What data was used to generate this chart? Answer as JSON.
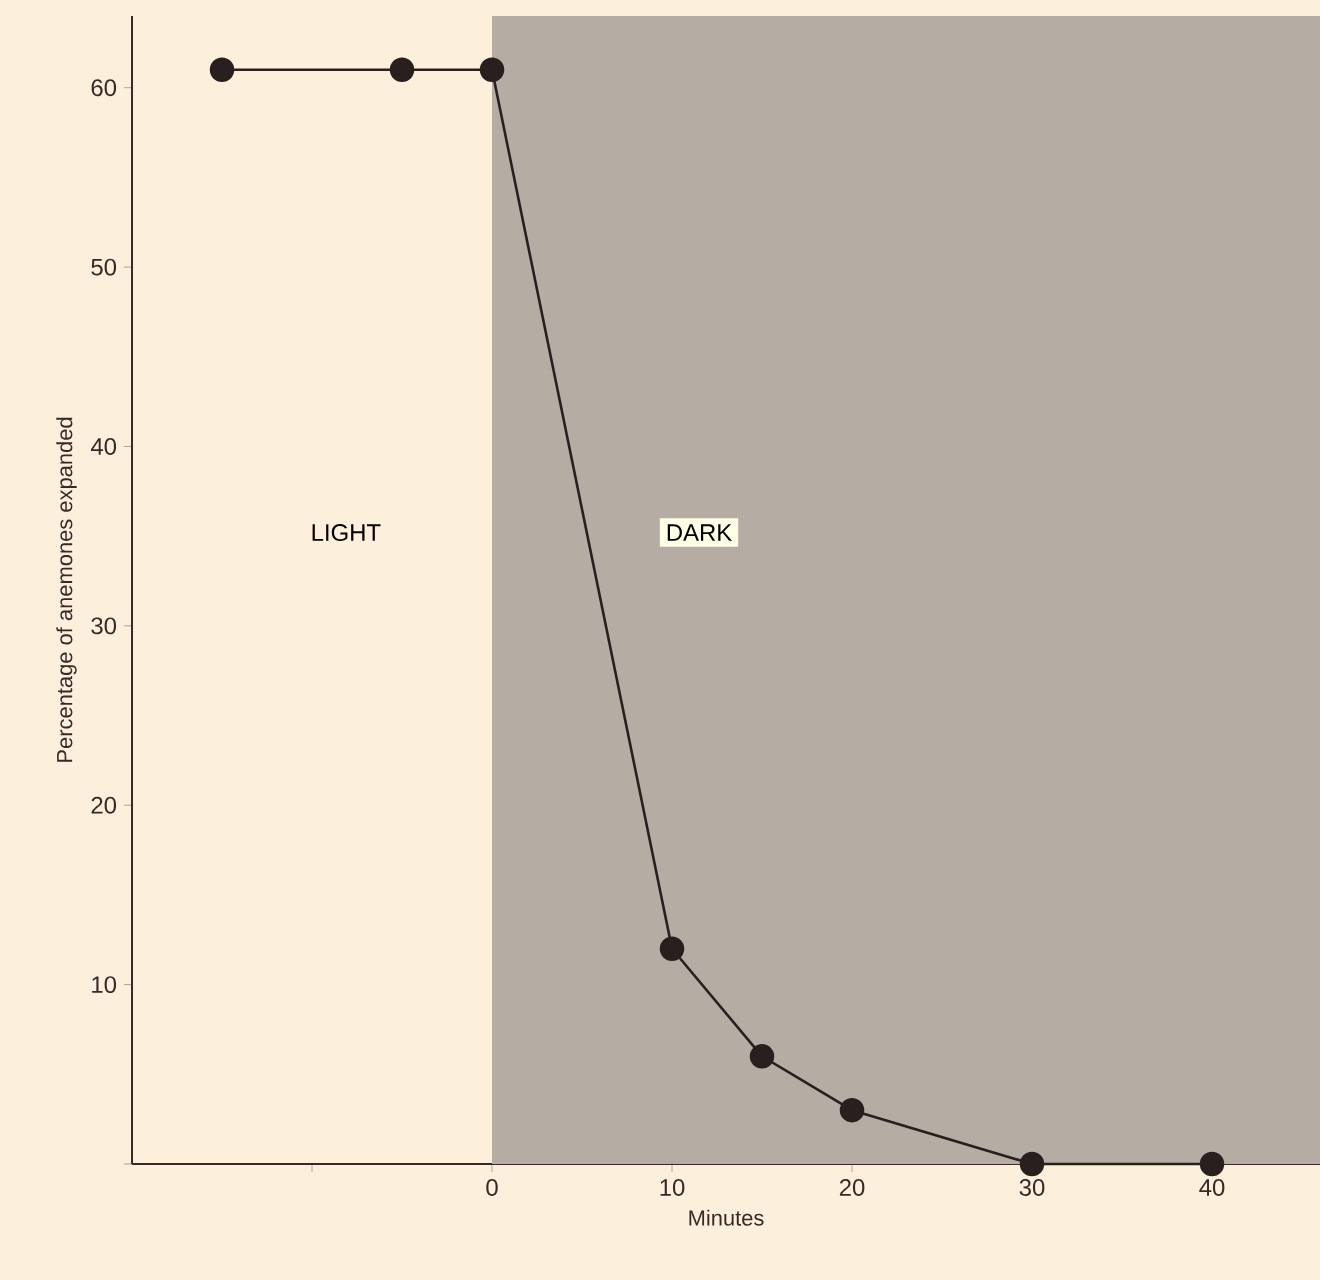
{
  "chart_data": {
    "type": "line",
    "xlabel": "Minutes",
    "ylabel": "Percentage of anemones expanded",
    "x": [
      -15,
      -5,
      0,
      10,
      15,
      20,
      30,
      40
    ],
    "series": [
      {
        "color": "#2a1f1f",
        "values": [
          61,
          61,
          61,
          12,
          6,
          3,
          0,
          0
        ]
      }
    ],
    "marker": "circle",
    "xlim": [
      -20,
      46
    ],
    "ylim": [
      0,
      64
    ],
    "xticks": [
      {
        "value": -10,
        "label": null
      },
      0,
      10,
      20,
      30,
      40
    ],
    "yticks": [
      {
        "value": 0,
        "label": null
      },
      10,
      20,
      30,
      40,
      50,
      60
    ],
    "bands": [
      {
        "axis": "x",
        "from": 0,
        "to": 46,
        "label": "DARK",
        "color": "#b5aca4"
      }
    ],
    "annotations": [
      "LIGHT"
    ]
  }
}
